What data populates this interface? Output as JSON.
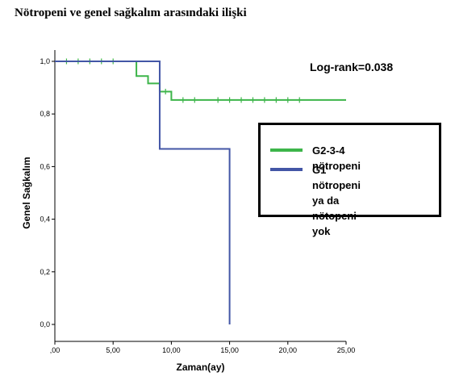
{
  "title": "Nötropeni ve genel sağkalım arasındaki ilişki",
  "annotation": "Log-rank=0.038",
  "colors": {
    "green": "#3db54a",
    "blue": "#4356a6",
    "axis": "#000000"
  },
  "chart_data": {
    "type": "line",
    "subtype": "kaplan-meier",
    "xlabel": "Zaman(ay)",
    "ylabel": "Genel Sağkalım",
    "xlim": [
      0,
      25
    ],
    "ylim": [
      0,
      1
    ],
    "xticks": [
      0,
      5,
      10,
      15,
      20,
      25
    ],
    "xtick_labels": [
      ",00",
      "5,00",
      "10,00",
      "15,00",
      "20,00",
      "25,00"
    ],
    "yticks": [
      0,
      0.2,
      0.4,
      0.6,
      0.8,
      1.0
    ],
    "ytick_labels": [
      "0,0",
      "0,2",
      "0,4",
      "0,6",
      "0,8",
      "1,0"
    ],
    "grid": false,
    "legend_position": "right",
    "series": [
      {
        "name": "G2-3-4 nötropeni",
        "color": "#3db54a",
        "steps": [
          [
            0,
            1.0
          ],
          [
            7,
            0.944
          ],
          [
            8,
            0.916
          ],
          [
            9,
            0.885
          ],
          [
            10,
            0.853
          ],
          [
            25,
            0.853
          ]
        ],
        "censored": [
          [
            1,
            1.0
          ],
          [
            2,
            1.0
          ],
          [
            3,
            1.0
          ],
          [
            4,
            1.0
          ],
          [
            5,
            1.0
          ],
          [
            9.5,
            0.885
          ],
          [
            11,
            0.853
          ],
          [
            12,
            0.853
          ],
          [
            14,
            0.853
          ],
          [
            15,
            0.853
          ],
          [
            16,
            0.853
          ],
          [
            17,
            0.853
          ],
          [
            18,
            0.853
          ],
          [
            19,
            0.853
          ],
          [
            20,
            0.853
          ],
          [
            21,
            0.853
          ]
        ]
      },
      {
        "name": "G1 nötropeni ya da nötopeni yok",
        "color": "#4356a6",
        "steps": [
          [
            0,
            1.0
          ],
          [
            9,
            0.667
          ],
          [
            15,
            0.0
          ]
        ],
        "censored": []
      }
    ]
  },
  "legend": {
    "items": [
      {
        "label": "G2-3-4 nötropeni"
      },
      {
        "label_line1": "G1 nötropeni ya da",
        "label_line2": "nötopeni yok"
      }
    ]
  }
}
